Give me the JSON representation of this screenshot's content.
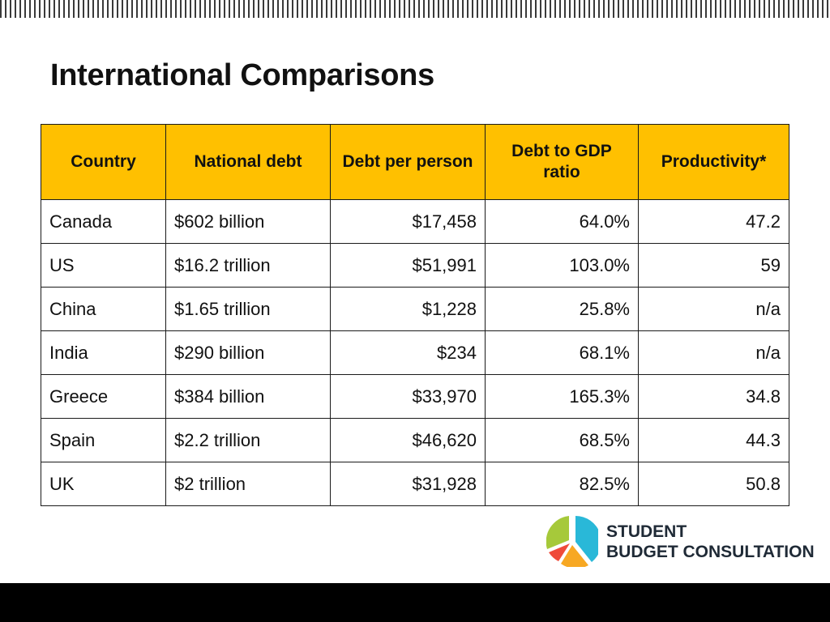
{
  "title": "International Comparisons",
  "table": {
    "headers": [
      "Country",
      "National debt",
      "Debt per person",
      "Debt to GDP ratio",
      "Productivity*"
    ],
    "rows": [
      [
        "Canada",
        "$602 billion",
        "$17,458",
        "64.0%",
        "47.2"
      ],
      [
        "US",
        "$16.2 trillion",
        "$51,991",
        "103.0%",
        "59"
      ],
      [
        "China",
        "$1.65 trillion",
        "$1,228",
        "25.8%",
        "n/a"
      ],
      [
        "India",
        "$290 billion",
        "$234",
        "68.1%",
        "n/a"
      ],
      [
        "Greece",
        "$384 billion",
        "$33,970",
        "165.3%",
        "34.8"
      ],
      [
        "Spain",
        "$2.2 trillion",
        "$46,620",
        "68.5%",
        "44.3"
      ],
      [
        "UK",
        "$2 trillion",
        "$31,928",
        "82.5%",
        "50.8"
      ]
    ]
  },
  "logo": {
    "line1": "STUDENT",
    "line2": "BUDGET CONSULTATION",
    "icon": "pie-chart-icon",
    "colors": {
      "blue": "#29b8d8",
      "orange": "#f7a823",
      "red": "#ef4b3a",
      "green": "#a6c93a"
    }
  },
  "colors": {
    "header_fill": "#ffc000",
    "bottom_bar": "#000000"
  }
}
